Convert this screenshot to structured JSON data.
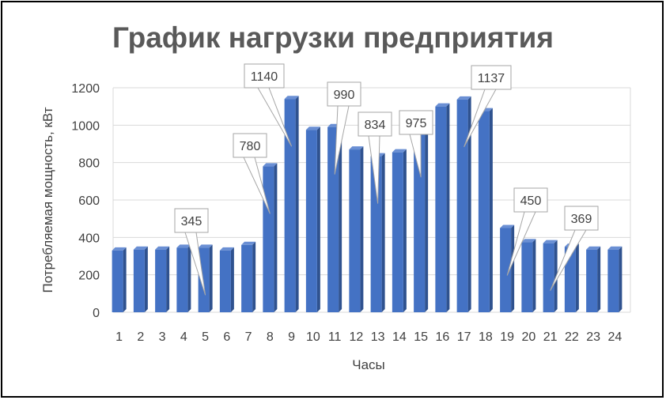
{
  "chart_data": {
    "type": "bar",
    "title": "График нагрузки предприятия",
    "xlabel": "Часы",
    "ylabel": "Потребляемая мощность, кВт",
    "ylim": [
      0,
      1200
    ],
    "yticks": [
      0,
      200,
      400,
      600,
      800,
      1000,
      1200
    ],
    "grid": true,
    "legend": "none",
    "categories": [
      "1",
      "2",
      "3",
      "4",
      "5",
      "6",
      "7",
      "8",
      "9",
      "10",
      "11",
      "12",
      "13",
      "14",
      "15",
      "16",
      "17",
      "18",
      "19",
      "20",
      "21",
      "22",
      "23",
      "24"
    ],
    "values": [
      330,
      335,
      335,
      345,
      345,
      330,
      360,
      780,
      1140,
      975,
      990,
      870,
      834,
      855,
      975,
      1100,
      1137,
      1075,
      450,
      375,
      369,
      350,
      335,
      335
    ],
    "annotations": [
      {
        "hour": "5",
        "label": "345"
      },
      {
        "hour": "8",
        "label": "780"
      },
      {
        "hour": "9",
        "label": "1140"
      },
      {
        "hour": "11",
        "label": "990"
      },
      {
        "hour": "13",
        "label": "834"
      },
      {
        "hour": "15",
        "label": "975"
      },
      {
        "hour": "17",
        "label": "1137"
      },
      {
        "hour": "19",
        "label": "450"
      },
      {
        "hour": "21",
        "label": "369"
      }
    ],
    "colors": {
      "bar": "#4472C4",
      "bar_dark": "#2F528F",
      "grid": "#D9D9D9",
      "text": "#404040",
      "title": "#595959"
    }
  }
}
